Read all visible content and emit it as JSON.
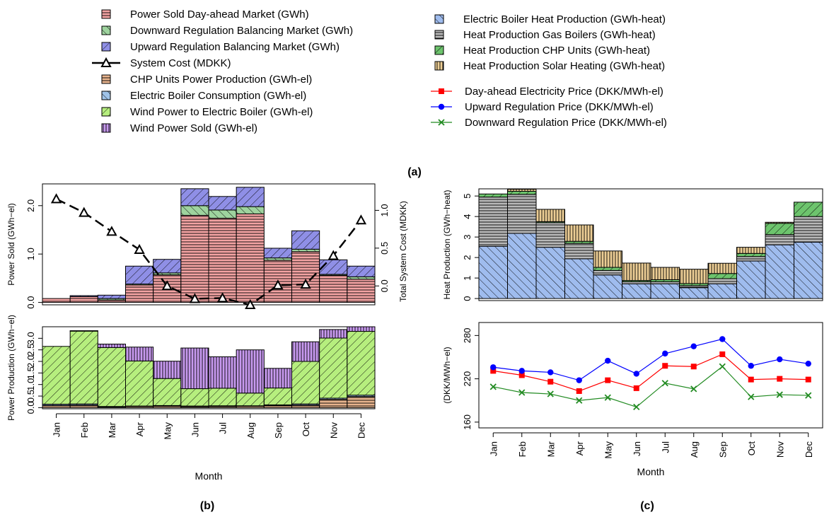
{
  "legend": {
    "left": [
      {
        "key": "sold_da",
        "label": "Power Sold Day-ahead Market (GWh)"
      },
      {
        "key": "down_reg",
        "label": "Downward Regulation Balancing Market (GWh)"
      },
      {
        "key": "up_reg",
        "label": "Upward Regulation Balancing Market (GWh)"
      },
      {
        "key": "sys_cost",
        "label": "System Cost (MDKK)"
      },
      {
        "key": "chp_el",
        "label": "CHP Units Power Production (GWh-el)"
      },
      {
        "key": "eb_cons",
        "label": "Electric Boiler Consumption (GWh-el)"
      },
      {
        "key": "wind_eb",
        "label": "Wind Power to Electric Boiler (GWh-el)"
      },
      {
        "key": "wind_sold",
        "label": "Wind Power Sold (GWh-el)"
      }
    ],
    "right": [
      {
        "key": "eb_heat",
        "label": "Electric Boiler Heat Production (GWh-heat)"
      },
      {
        "key": "gas_heat",
        "label": "Heat Production Gas Boilers (GWh-heat)"
      },
      {
        "key": "chp_heat",
        "label": "Heat Production CHP Units (GWh-heat)"
      },
      {
        "key": "solar_heat",
        "label": "Heat Production Solar Heating (GWh-heat)"
      },
      {
        "key": "p_da",
        "label": "Day-ahead Electricity Price (DKK/MWh-el)"
      },
      {
        "key": "p_up",
        "label": "Upward Regulation Price (DKK/MWh-el)"
      },
      {
        "key": "p_down",
        "label": "Downward Regulation Price (DKK/MWh-el)"
      }
    ]
  },
  "captions": {
    "a": "(a)",
    "b": "(b)",
    "c": "(c)"
  },
  "colors": {
    "sold_da": "#f4a3a3",
    "down_reg": "#9ed39e",
    "up_reg": "#8f8fe6",
    "chp_el": "#e8b48e",
    "eb_cons": "#9fc3e8",
    "wind_eb": "#b6ee7e",
    "wind_sold": "#c89af0",
    "eb_heat": "#9fbcee",
    "gas_heat": "#b9b9b9",
    "chp_heat": "#6dc46d",
    "solar_heat": "#edce95",
    "p_da": "#ff0000",
    "p_up": "#0000ff",
    "p_down": "#228b22"
  },
  "chart_data": [
    {
      "type": "bar",
      "id": "b_top",
      "categories": [
        "Jan",
        "Feb",
        "Mar",
        "Apr",
        "May",
        "Jun",
        "Jul",
        "Aug",
        "Sep",
        "Oct",
        "Nov",
        "Dec"
      ],
      "ylabel": "Power Sold (GWh−el)",
      "y2label": "Total System Cost (MDKK)",
      "ylim": [
        -0.05,
        2.45
      ],
      "yticks": [
        0.0,
        1.0,
        2.0
      ],
      "yticklabels": [
        "0.0",
        "1.0",
        "2.0"
      ],
      "y2lim": [
        -0.25,
        1.35
      ],
      "y2ticks": [
        0.0,
        0.5,
        1.0
      ],
      "y2ticklabels": [
        "0.0",
        "0.5",
        "1.0"
      ],
      "series": [
        {
          "name": "Power Sold Day-ahead Market (GWh)",
          "key": "sold_da",
          "values": [
            0.08,
            0.12,
            0.05,
            0.36,
            0.57,
            1.8,
            1.74,
            1.83,
            0.87,
            1.05,
            0.56,
            0.48
          ]
        },
        {
          "name": "Downward Regulation Balancing Market (GWh)",
          "key": "down_reg",
          "values": [
            0.0,
            0.0,
            0.03,
            0.02,
            0.04,
            0.2,
            0.17,
            0.15,
            0.05,
            0.05,
            0.02,
            0.05
          ]
        },
        {
          "name": "Upward Regulation Balancing Market (GWh)",
          "key": "up_reg",
          "values": [
            0.0,
            0.02,
            0.07,
            0.37,
            0.28,
            0.35,
            0.28,
            0.4,
            0.2,
            0.38,
            0.3,
            0.22
          ]
        }
      ],
      "line": {
        "name": "System Cost (MDKK)",
        "values": [
          1.15,
          0.97,
          0.72,
          0.48,
          0.0,
          -0.17,
          -0.16,
          -0.25,
          0.01,
          0.02,
          0.4,
          0.87
        ]
      }
    },
    {
      "type": "bar",
      "id": "b_bottom",
      "categories": [
        "Jan",
        "Feb",
        "Mar",
        "Apr",
        "May",
        "Jun",
        "Jul",
        "Aug",
        "Sep",
        "Oct",
        "Nov",
        "Dec"
      ],
      "xlabel": "Month",
      "ylabel": "Power Production (GWh−el)",
      "ylim": [
        -0.05,
        3.5
      ],
      "yticks": [
        0.0,
        0.5,
        1.0,
        1.5,
        2.0,
        2.5,
        3.0
      ],
      "yticklabels": [
        "0.0",
        "0.5",
        "1.0",
        "1.5",
        "2.0",
        "2.5",
        "3.0"
      ],
      "series": [
        {
          "name": "CHP Units Power Production (GWh-el)",
          "key": "chp_el",
          "values": [
            0.1,
            0.11,
            0.03,
            0.05,
            0.06,
            0.04,
            0.05,
            0.06,
            0.09,
            0.11,
            0.36,
            0.48
          ]
        },
        {
          "name": "Electric Boiler Consumption (GWh-el)",
          "key": "eb_cons",
          "values": [
            0.05,
            0.05,
            0.02,
            0.02,
            0.03,
            0.03,
            0.03,
            0.02,
            0.03,
            0.05,
            0.05,
            0.06
          ]
        },
        {
          "name": "Wind Power to Electric Boiler (GWh-el)",
          "key": "wind_eb",
          "values": [
            2.5,
            3.15,
            2.55,
            1.95,
            1.17,
            0.75,
            0.76,
            0.55,
            0.73,
            1.84,
            2.6,
            2.76
          ]
        },
        {
          "name": "Wind Power Sold (GWh-el)",
          "key": "wind_sold",
          "values": [
            0.0,
            0.02,
            0.15,
            0.6,
            0.75,
            1.76,
            1.36,
            1.87,
            0.85,
            0.85,
            0.37,
            0.2
          ]
        }
      ]
    },
    {
      "type": "bar",
      "id": "c_top",
      "categories": [
        "Jan",
        "Feb",
        "Mar",
        "Apr",
        "May",
        "Jun",
        "Jul",
        "Aug",
        "Sep",
        "Oct",
        "Nov",
        "Dec"
      ],
      "ylabel": "Heat Production (GWh−heat)",
      "ylim": [
        -0.1,
        5.35
      ],
      "yticks": [
        0,
        1,
        2,
        3,
        4,
        5
      ],
      "yticklabels": [
        "0",
        "1",
        "2",
        "3",
        "4",
        "5"
      ],
      "series": [
        {
          "name": "Electric Boiler Heat Production (GWh-heat)",
          "key": "eb_heat",
          "values": [
            2.55,
            3.18,
            2.5,
            1.94,
            1.15,
            0.72,
            0.72,
            0.53,
            0.72,
            1.83,
            2.62,
            2.75
          ]
        },
        {
          "name": "Heat Production Gas Boilers (GWh-heat)",
          "key": "gas_heat",
          "values": [
            2.4,
            1.9,
            1.2,
            0.75,
            0.22,
            0.1,
            0.1,
            0.1,
            0.25,
            0.22,
            0.5,
            1.25
          ]
        },
        {
          "name": "Heat Production CHP Units (GWh-heat)",
          "key": "chp_heat",
          "values": [
            0.15,
            0.15,
            0.05,
            0.1,
            0.15,
            0.06,
            0.1,
            0.1,
            0.25,
            0.15,
            0.55,
            0.7
          ]
        },
        {
          "name": "Heat Production Solar Heating (GWh-heat)",
          "key": "solar_heat",
          "values": [
            0.0,
            0.1,
            0.6,
            0.8,
            0.8,
            0.85,
            0.6,
            0.7,
            0.5,
            0.3,
            0.05,
            0.0
          ]
        }
      ]
    },
    {
      "type": "line",
      "id": "c_bottom",
      "categories": [
        "Jan",
        "Feb",
        "Mar",
        "Apr",
        "May",
        "Jun",
        "Jul",
        "Aug",
        "Sep",
        "Oct",
        "Nov",
        "Dec"
      ],
      "xlabel": "Month",
      "ylabel": "(DKK/MWh−el)",
      "ylim": [
        152,
        298
      ],
      "yticks": [
        160,
        220,
        280
      ],
      "yticklabels": [
        "160",
        "220",
        "280"
      ],
      "series": [
        {
          "name": "Day-ahead Electricity Price (DKK/MWh-el)",
          "key": "p_da",
          "marker": "square",
          "values": [
            231,
            225,
            216,
            203,
            218,
            207,
            238,
            237,
            254,
            219,
            220,
            219
          ]
        },
        {
          "name": "Upward Regulation Price (DKK/MWh-el)",
          "key": "p_up",
          "marker": "circle",
          "values": [
            236,
            231,
            229,
            218,
            245,
            227,
            255,
            265,
            275,
            238,
            247,
            241
          ]
        },
        {
          "name": "Downward Regulation Price (DKK/MWh-el)",
          "key": "p_down",
          "marker": "cross",
          "values": [
            209,
            201,
            199,
            190,
            194,
            181,
            214,
            206,
            237,
            195,
            198,
            197
          ]
        }
      ]
    }
  ]
}
